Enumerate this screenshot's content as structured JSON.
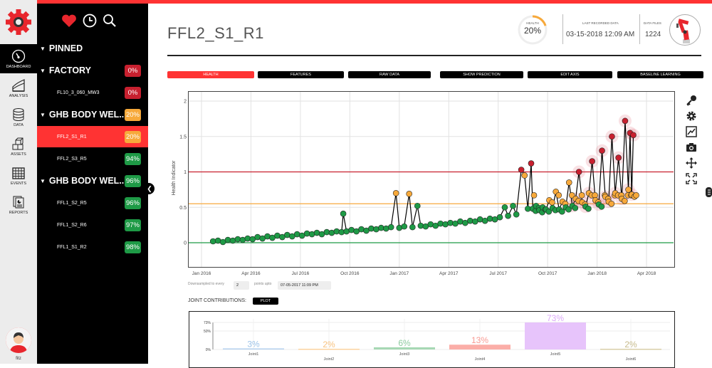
{
  "nav": {
    "items": [
      {
        "label": "DASHBOARD",
        "icon": "gauge-icon"
      },
      {
        "label": "ANALYSIS",
        "icon": "area-chart-icon"
      },
      {
        "label": "DATA",
        "icon": "database-icon"
      },
      {
        "label": "ASSETS",
        "icon": "boxes-icon"
      },
      {
        "label": "EVENTS",
        "icon": "calendar-icon"
      },
      {
        "label": "REPORTS",
        "icon": "report-icon"
      }
    ],
    "user": "fitz"
  },
  "sidebar": {
    "rows": [
      {
        "type": "group",
        "label": "PINNED"
      },
      {
        "type": "group",
        "label": "FACTORY",
        "badge": "0%",
        "color": "#c8202f"
      },
      {
        "type": "item",
        "label": "FL10_3_060_MW3",
        "badge": "0%",
        "color": "#c8202f"
      },
      {
        "type": "group",
        "label": "GHB BODY WEL...",
        "badge": "20%",
        "color": "#f7a93b"
      },
      {
        "type": "item",
        "label": "FFL2_S1_R1",
        "badge": "20%",
        "color": "#f7a93b",
        "selected": true
      },
      {
        "type": "item",
        "label": "FFL2_S3_R5",
        "badge": "94%",
        "color": "#1e9a46"
      },
      {
        "type": "group",
        "label": "GHB BODY WEL...",
        "badge": "96%",
        "color": "#1e9a46"
      },
      {
        "type": "item",
        "label": "FFL1_S2_R5",
        "badge": "96%",
        "color": "#1e9a46"
      },
      {
        "type": "item",
        "label": "FFL1_S2_R6",
        "badge": "97%",
        "color": "#1e9a46"
      },
      {
        "type": "item",
        "label": "FFL1_S1_R2",
        "badge": "98%",
        "color": "#1e9a46"
      }
    ]
  },
  "header": {
    "title": "FFL2_S1_R1",
    "health_label": "HEALTH",
    "health_value": "20%",
    "health_fraction": 0.2,
    "last_label": "LAST RECORDED DATA",
    "last_value": "03-15-2018 12:09 AM",
    "files_label": "DATA FILES",
    "files_value": "1224"
  },
  "tabs": [
    "HEALTH",
    "FEATURES",
    "RAW DATA",
    "SHOW PREDICTION",
    "EDIT AXIS",
    "BASELINE LEARNING"
  ],
  "controls": {
    "ds_prefix": "Downsampled to every",
    "ds_value": "2",
    "ds_mid": "points upto",
    "ds_date": "07-05-2017 11:09 PM",
    "jc_label": "JOINT CONTRIBUTIONS:",
    "plot": "PLOT"
  },
  "colors": {
    "accent": "#ff3333",
    "green": "#1e9a46",
    "orange": "#f7a93b",
    "red": "#c8202f"
  },
  "chart_data": [
    {
      "type": "scatter",
      "title": "",
      "ylabel": "Health Indicator",
      "xlabel": "",
      "ylim": [
        0,
        2
      ],
      "yticks": [
        "0",
        "0.5",
        "1",
        "1.5",
        "2"
      ],
      "ytick_values": [
        0,
        0.5,
        1,
        1.5,
        2
      ],
      "xticks": [
        "Jan 2016",
        "Apr 2016",
        "Jul 2016",
        "Oct 2016",
        "Jan 2017",
        "Apr 2017",
        "Jul 2017",
        "Oct 2017",
        "Jan 2018",
        "Apr 2018"
      ],
      "xtick_months": [
        0,
        3,
        6,
        9,
        12,
        15,
        18,
        21,
        24,
        27
      ],
      "x_unit": "months since Jan 2016",
      "thresholds": [
        {
          "value": 1,
          "color": "#c8202f"
        },
        {
          "value": 0.55,
          "color": "#f7a93b"
        },
        {
          "value": 0,
          "color": "#1e9a46"
        }
      ],
      "points": [
        [
          0.7,
          0.02
        ],
        [
          1.0,
          0.03
        ],
        [
          1.3,
          0.01
        ],
        [
          1.6,
          0.04
        ],
        [
          1.9,
          0.03
        ],
        [
          2.2,
          0.05
        ],
        [
          2.5,
          0.04
        ],
        [
          2.8,
          0.06
        ],
        [
          3.1,
          0.05
        ],
        [
          3.4,
          0.08
        ],
        [
          3.7,
          0.06
        ],
        [
          4.0,
          0.09
        ],
        [
          4.3,
          0.07
        ],
        [
          4.6,
          0.1
        ],
        [
          4.9,
          0.08
        ],
        [
          5.2,
          0.11
        ],
        [
          5.5,
          0.09
        ],
        [
          5.8,
          0.12
        ],
        [
          6.1,
          0.1
        ],
        [
          6.4,
          0.13
        ],
        [
          6.7,
          0.12
        ],
        [
          7.0,
          0.14
        ],
        [
          7.3,
          0.12
        ],
        [
          7.6,
          0.15
        ],
        [
          7.9,
          0.14
        ],
        [
          8.2,
          0.16
        ],
        [
          8.5,
          0.15
        ],
        [
          8.6,
          0.41
        ],
        [
          8.8,
          0.16
        ],
        [
          9.1,
          0.18
        ],
        [
          9.4,
          0.16
        ],
        [
          9.7,
          0.19
        ],
        [
          10.0,
          0.17
        ],
        [
          10.3,
          0.2
        ],
        [
          10.6,
          0.19
        ],
        [
          10.9,
          0.21
        ],
        [
          11.2,
          0.2
        ],
        [
          11.5,
          0.22
        ],
        [
          11.8,
          0.7
        ],
        [
          12.0,
          0.21
        ],
        [
          12.3,
          0.23
        ],
        [
          12.6,
          0.69
        ],
        [
          12.8,
          0.22
        ],
        [
          13.1,
          0.52
        ],
        [
          13.3,
          0.24
        ],
        [
          13.6,
          0.23
        ],
        [
          13.9,
          0.26
        ],
        [
          14.2,
          0.24
        ],
        [
          14.5,
          0.27
        ],
        [
          14.8,
          0.26
        ],
        [
          15.1,
          0.28
        ],
        [
          15.4,
          0.27
        ],
        [
          15.7,
          0.3
        ],
        [
          16.0,
          0.28
        ],
        [
          16.3,
          0.31
        ],
        [
          16.6,
          0.3
        ],
        [
          16.9,
          0.33
        ],
        [
          17.2,
          0.31
        ],
        [
          17.5,
          0.34
        ],
        [
          17.8,
          0.33
        ],
        [
          18.1,
          0.36
        ],
        [
          18.4,
          0.5
        ],
        [
          18.6,
          0.38
        ],
        [
          18.9,
          0.52
        ],
        [
          19.1,
          0.4
        ],
        [
          19.4,
          1.03
        ],
        [
          19.6,
          0.95
        ],
        [
          19.8,
          0.48
        ],
        [
          20.0,
          1.12
        ],
        [
          20.1,
          0.48
        ],
        [
          20.3,
          0.52
        ],
        [
          20.5,
          0.46
        ],
        [
          20.7,
          0.5
        ],
        [
          20.9,
          0.47
        ],
        [
          21.1,
          0.6
        ],
        [
          21.3,
          0.49
        ],
        [
          21.5,
          0.72
        ],
        [
          21.7,
          0.47
        ],
        [
          21.9,
          0.58
        ],
        [
          22.1,
          0.5
        ],
        [
          22.3,
          0.85
        ],
        [
          22.5,
          0.52
        ],
        [
          22.7,
          0.62
        ],
        [
          22.9,
          1.0
        ],
        [
          23.1,
          0.57
        ],
        [
          23.3,
          0.51
        ],
        [
          23.5,
          0.7
        ],
        [
          23.7,
          1.15
        ],
        [
          23.9,
          0.6
        ],
        [
          24.1,
          0.54
        ],
        [
          24.3,
          1.3
        ],
        [
          24.5,
          0.65
        ],
        [
          24.7,
          0.58
        ],
        [
          24.9,
          1.5
        ],
        [
          25.1,
          0.7
        ],
        [
          25.3,
          1.2
        ],
        [
          25.5,
          0.62
        ],
        [
          25.7,
          1.72
        ],
        [
          25.9,
          0.75
        ],
        [
          26.0,
          1.55
        ],
        [
          26.1,
          0.68
        ],
        [
          26.2,
          1.52
        ]
      ]
    },
    {
      "type": "bar",
      "categories": [
        "Joint1",
        "Joint2",
        "Joint3",
        "Joint4",
        "Joint5",
        "Joint6"
      ],
      "values": [
        3,
        2,
        6,
        13,
        73,
        2
      ],
      "labels": [
        "3%",
        "2%",
        "6%",
        "13%",
        "73%",
        "2%"
      ],
      "colors": [
        "#b7d3ef",
        "#fcd39f",
        "#a7d8b4",
        "#fbaea8",
        "#e7c4fb",
        "#d9cfa8"
      ],
      "label_colors": [
        "#9cc3e9",
        "#f8c27f",
        "#8dcc9f",
        "#f99a93",
        "#dba8f8",
        "#c7bb8c"
      ],
      "yticks": [
        "0%",
        "50%",
        "73%"
      ],
      "ytick_values": [
        0,
        50,
        73
      ],
      "ylim": [
        0,
        73
      ]
    }
  ]
}
